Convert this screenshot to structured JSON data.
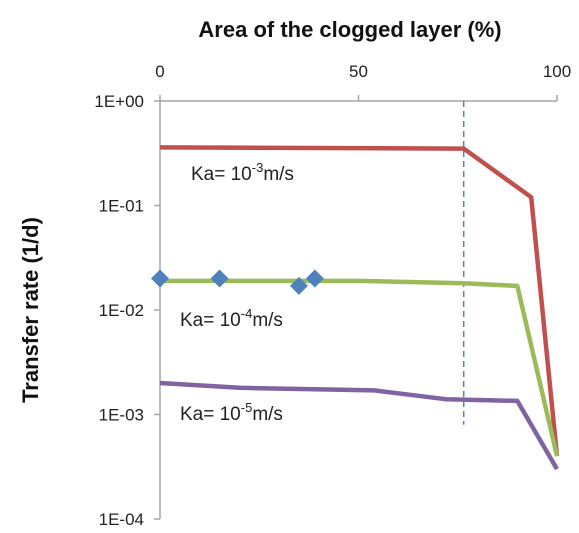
{
  "chart_data": {
    "type": "line",
    "xlabel": "Area of the clogged layer (%)",
    "ylabel": "Transfer rate (1/d)",
    "xlim": [
      0,
      100
    ],
    "ylim": [
      0.0001,
      1
    ],
    "y_scale": "log",
    "x_ticks": [
      "0",
      "50",
      "100"
    ],
    "x_tick_values": [
      0,
      50,
      100
    ],
    "y_ticks": [
      "1E+00",
      "1E-01",
      "1E-02",
      "1E-03",
      "1E-04"
    ],
    "y_tick_values": [
      1,
      0.1,
      0.01,
      0.001,
      0.0001
    ],
    "x_axis_position": "top",
    "grid": false,
    "colors": {
      "red": "#c0504d",
      "green": "#9bbb59",
      "purple": "#8064a2",
      "marker": "#4f81bd",
      "dashed": "#4f81bd",
      "axis": "#a6a6a6"
    },
    "series": [
      {
        "label_prefix": "Ka= 10",
        "label_exp": "-3",
        "label_unit": "m/s",
        "color": "#c0504d",
        "x": [
          0,
          76.5,
          93.5,
          100
        ],
        "y": [
          0.36,
          0.35,
          0.12,
          0.0004
        ]
      },
      {
        "label_prefix": "Ka= 10",
        "label_exp": "-4",
        "label_unit": "m/s",
        "color": "#9bbb59",
        "x": [
          0,
          50,
          76.5,
          90,
          100
        ],
        "y": [
          0.019,
          0.019,
          0.018,
          0.017,
          0.0004
        ]
      },
      {
        "label_prefix": "Ka= 10",
        "label_exp": "-5",
        "label_unit": "m/s",
        "color": "#8064a2",
        "x": [
          0,
          20,
          54,
          72,
          90,
          100
        ],
        "y": [
          0.002,
          0.0018,
          0.0017,
          0.0014,
          0.00135,
          0.0003
        ]
      }
    ],
    "markers": {
      "shape": "diamond",
      "color": "#4f81bd",
      "x": [
        0,
        15,
        35,
        39
      ],
      "y": [
        0.02,
        0.02,
        0.017,
        0.02
      ]
    },
    "reference_line": {
      "x": 76.5,
      "y_from": 1,
      "y_to": 0.0008,
      "style": "dashed"
    }
  }
}
